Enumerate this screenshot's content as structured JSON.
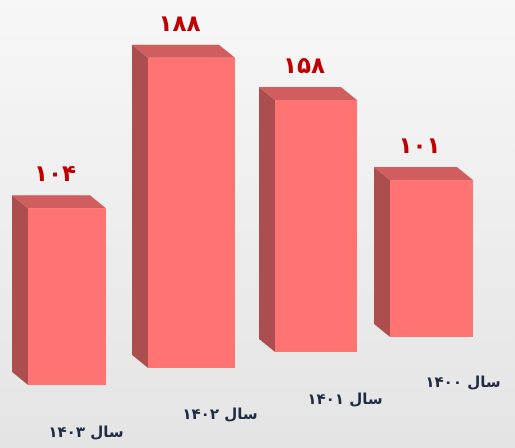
{
  "chart_data": {
    "type": "bar",
    "categories": [
      "سال ۱۴۰۳",
      "سال ۱۴۰۲",
      "سال ۱۴۰۱",
      "سال ۱۴۰۰"
    ],
    "values": [
      104,
      188,
      158,
      101
    ],
    "value_labels": [
      "۱۰۴",
      "۱۸۸",
      "۱۵۸",
      "۱۰۱"
    ],
    "color": "#ff7373"
  }
}
